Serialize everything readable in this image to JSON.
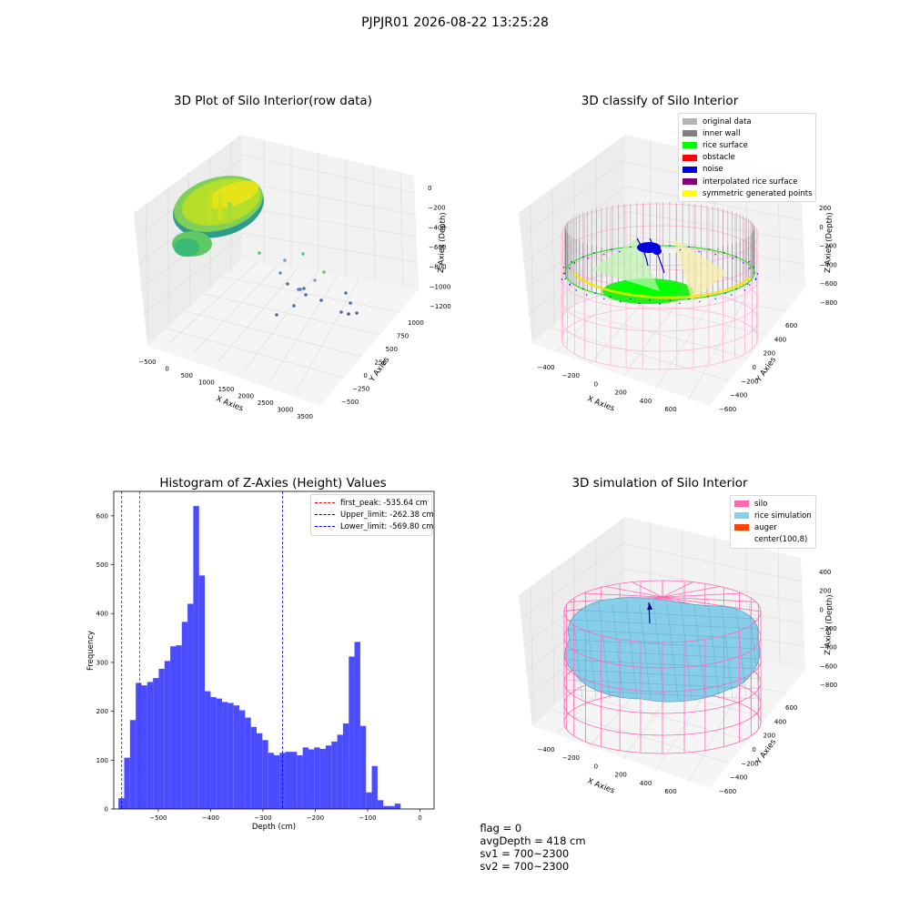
{
  "suptitle": "PJPJR01 2026-08-22 13:25:28",
  "panels": {
    "raw": {
      "title": "3D Plot of Silo Interior(row data)",
      "xlabel": "X Axies",
      "ylabel": "Y Axies",
      "zlabel": "Z Axies (Depth)",
      "xticks": [
        "−500",
        "0",
        "500",
        "1000",
        "1500",
        "2000",
        "2500",
        "3000",
        "3500"
      ],
      "yticks": [
        "−500",
        "−250",
        "0",
        "250",
        "500",
        "750",
        "1000"
      ],
      "zticks": [
        "0",
        "−200",
        "−400",
        "−600",
        "−800",
        "−1000",
        "−1200"
      ]
    },
    "classify": {
      "title": "3D classify of Silo Interior",
      "xlabel": "X Axies",
      "ylabel": "Y Axies",
      "zlabel": "Z Axies (Depth)",
      "xticks": [
        "−400",
        "−200",
        "0",
        "200",
        "400",
        "600"
      ],
      "yticks": [
        "−600",
        "−400",
        "−200",
        "0",
        "200",
        "400",
        "600"
      ],
      "zticks": [
        "200",
        "0",
        "−200",
        "−400",
        "−600",
        "−800"
      ],
      "zticks_hidden_top": "400",
      "legend": [
        {
          "label": "original data",
          "color": "#b3b3b3"
        },
        {
          "label": "inner wall",
          "color": "#808080"
        },
        {
          "label": "rice surface",
          "color": "#00ff00"
        },
        {
          "label": "obstacle",
          "color": "#ff0000"
        },
        {
          "label": "noise",
          "color": "#0000dd"
        },
        {
          "label": "interpolated rice surface",
          "color": "#800080"
        },
        {
          "label": "symmetric generated points",
          "color": "#ffff00"
        }
      ]
    },
    "simulation": {
      "title": "3D simulation of Silo Interior",
      "xlabel": "X Axies",
      "ylabel": "Y Axies",
      "zlabel": "Z Axies (Depth)",
      "xticks": [
        "−400",
        "−200",
        "0",
        "200",
        "400",
        "600"
      ],
      "yticks": [
        "−600",
        "−400",
        "−200",
        "0",
        "200",
        "400",
        "600"
      ],
      "zticks": [
        "400",
        "200",
        "0",
        "−200",
        "−400",
        "−600",
        "−800"
      ],
      "legend": [
        {
          "label": "silo",
          "color": "#ff69b4"
        },
        {
          "label": "rice simulation",
          "color": "#87ceeb"
        },
        {
          "label": "auger",
          "color": "#ff4500"
        },
        {
          "label": "center(100,8)",
          "color": ""
        }
      ]
    }
  },
  "chart_data": {
    "type": "bar",
    "title": "Histogram of Z-Axies (Height) Values",
    "xlabel": "Depth (cm)",
    "ylabel": "Frequency",
    "bar_color": "#4b4bff",
    "bin_start": -576,
    "bin_width": 11,
    "values": [
      22,
      105,
      182,
      258,
      253,
      260,
      268,
      287,
      303,
      333,
      335,
      383,
      420,
      620,
      478,
      241,
      229,
      226,
      219,
      217,
      212,
      202,
      187,
      168,
      155,
      141,
      115,
      110,
      115,
      117,
      117,
      110,
      126,
      122,
      126,
      123,
      130,
      138,
      152,
      175,
      312,
      342,
      170,
      34,
      88,
      18,
      6,
      6,
      11
    ],
    "xlim": [
      -585,
      27
    ],
    "ylim": [
      0,
      650
    ],
    "xticks": [
      -500,
      -400,
      -300,
      -200,
      -100,
      0
    ],
    "yticks": [
      0,
      100,
      200,
      300,
      400,
      500,
      600
    ],
    "xtick_labels": [
      "−500",
      "−400",
      "−300",
      "−200",
      "−100",
      "0"
    ],
    "lines": [
      {
        "name": "first_peak: -535.64 cm",
        "x": -535.64,
        "color": "#ff0000"
      },
      {
        "name": "Upper_limit: -262.38 cm",
        "x": -262.38,
        "color": "#0000ff"
      },
      {
        "name": "Lower_limit: -569.80 cm",
        "x": -569.8,
        "color": "#0000ff"
      }
    ],
    "legend_position": "upper right"
  },
  "footer": {
    "flag": "flag = 0",
    "avg": "avgDepth = 418 cm",
    "sv1": "sv1 = 700~2300",
    "sv2": "sv2 = 700~2300"
  }
}
